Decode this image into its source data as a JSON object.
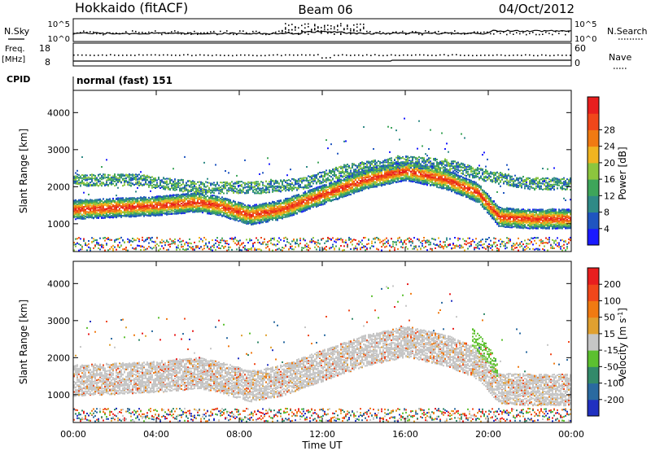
{
  "header": {
    "station": "Hokkaido (fitACF)",
    "beam": "Beam 06",
    "date": "04/Oct/2012"
  },
  "top_panels": {
    "nsky_label": "N.Sky",
    "nsearch_label": "N.Search",
    "nsky_ticks": [
      "10^5",
      "10^0"
    ],
    "nsearch_ticks": [
      "10^5",
      "10^0"
    ],
    "freq_label": "Freq.",
    "freq_unit": "[MHz]",
    "freq_ticks": [
      "18",
      "8"
    ],
    "nave_label": "Nave",
    "nave_ticks": [
      "60",
      "0"
    ],
    "cpid_label": "CPID",
    "cpid_value": "normal (fast) 151"
  },
  "chart_data": [
    {
      "type": "heatmap",
      "title": "",
      "xlabel": "Time UT",
      "ylabel": "Slant Range [km]",
      "x_ticks": [
        "00:00",
        "04:00",
        "08:00",
        "12:00",
        "16:00",
        "20:00",
        "00:00"
      ],
      "y_ticks": [
        1000,
        2000,
        3000,
        4000
      ],
      "xlim_hours": [
        0,
        24
      ],
      "ylim": [
        250,
        4600
      ],
      "colorbar": {
        "label": "Power [dB]",
        "ticks": [
          "4",
          "8",
          "12",
          "16",
          "20",
          "24",
          "28"
        ],
        "colors": [
          "#1a1aff",
          "#1f55c0",
          "#2f8a86",
          "#3ea55a",
          "#8cc63e",
          "#f0b420",
          "#f07a12",
          "#f0471a",
          "#e81e1e"
        ]
      },
      "bands": [
        {
          "name": "main",
          "points": [
            [
              0,
              1400
            ],
            [
              2,
              1450
            ],
            [
              4,
              1500
            ],
            [
              6,
              1600
            ],
            [
              7,
              1500
            ],
            [
              8.5,
              1250
            ],
            [
              10,
              1400
            ],
            [
              12,
              1800
            ],
            [
              14,
              2200
            ],
            [
              16,
              2450
            ],
            [
              18,
              2200
            ],
            [
              19.5,
              1850
            ],
            [
              20.5,
              1200
            ],
            [
              22,
              1150
            ],
            [
              24,
              1150
            ]
          ],
          "halfwidth": 260,
          "level": 0.85
        },
        {
          "name": "upper",
          "points": [
            [
              0,
              2200
            ],
            [
              3,
              2200
            ],
            [
              6,
              2000
            ],
            [
              9,
              2000
            ],
            [
              11,
              2100
            ],
            [
              13,
              2450
            ],
            [
              16,
              2700
            ],
            [
              18,
              2600
            ],
            [
              20,
              2300
            ],
            [
              22,
              2100
            ],
            [
              24,
              2100
            ]
          ],
          "halfwidth": 160,
          "level": 0.5
        }
      ]
    },
    {
      "type": "heatmap",
      "title": "",
      "xlabel": "Time UT",
      "ylabel": "Slant Range [km]",
      "x_ticks": [
        "00:00",
        "04:00",
        "08:00",
        "12:00",
        "16:00",
        "20:00",
        "00:00"
      ],
      "y_ticks": [
        1000,
        2000,
        3000,
        4000
      ],
      "xlim_hours": [
        0,
        24
      ],
      "ylim": [
        250,
        4600
      ],
      "colorbar": {
        "label": "Velocity [m s^-1]",
        "ticks": [
          "200",
          "100",
          "50",
          "15",
          "-15",
          "-50",
          "-100",
          "-200"
        ],
        "colors": [
          "#2030c0",
          "#2a6aa0",
          "#338a6a",
          "#5cc030",
          "#c6c6c6",
          "#e0a030",
          "#f07a12",
          "#f0471a",
          "#e81e1e"
        ]
      },
      "bands": [
        {
          "name": "ground",
          "points": [
            [
              0,
              1400
            ],
            [
              2,
              1450
            ],
            [
              4,
              1500
            ],
            [
              6,
              1600
            ],
            [
              7,
              1500
            ],
            [
              8.5,
              1250
            ],
            [
              10,
              1400
            ],
            [
              12,
              1800
            ],
            [
              14,
              2200
            ],
            [
              16,
              2450
            ],
            [
              18,
              2200
            ],
            [
              19.5,
              1850
            ],
            [
              20.5,
              1200
            ],
            [
              22,
              1150
            ],
            [
              24,
              1150
            ]
          ],
          "halfwidth": 420,
          "level": 0.5
        },
        {
          "name": "positive-flow",
          "points": [
            [
              19.2,
              2600
            ],
            [
              19.8,
              2200
            ],
            [
              20.4,
              1700
            ]
          ],
          "halfwidth": 260,
          "level": 0.3
        }
      ]
    }
  ]
}
